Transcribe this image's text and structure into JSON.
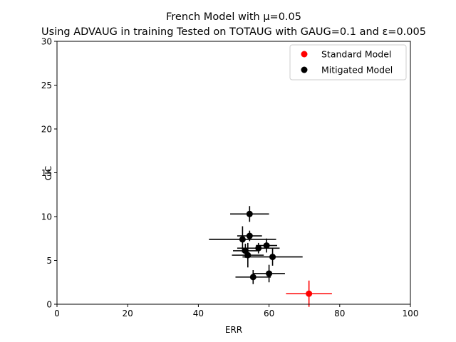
{
  "chart_data": {
    "type": "scatter",
    "title_line1": "French Model with μ=0.05",
    "title_line2": "Using ADVAUG in training Tested on TOTAUG with GAUG=0.1 and ε=0.005",
    "xlabel": "ERR",
    "ylabel": "CIC",
    "xlim": [
      0,
      100
    ],
    "ylim": [
      0,
      30
    ],
    "xticks": [
      0,
      20,
      40,
      60,
      80,
      100
    ],
    "yticks": [
      0,
      5,
      10,
      15,
      20,
      25,
      30
    ],
    "grid": false,
    "legend_position": "top-right",
    "series": [
      {
        "name": "Standard Model",
        "color": "#ff0000",
        "points": [
          {
            "x": 71.3,
            "y": 1.2,
            "xerr": 6.5,
            "yerr": 1.5
          }
        ]
      },
      {
        "name": "Mitigated Model",
        "color": "#000000",
        "points": [
          {
            "x": 54.5,
            "y": 10.3,
            "xerr": 5.5,
            "yerr": 0.9
          },
          {
            "x": 54.5,
            "y": 7.8,
            "xerr": 3.5,
            "yerr": 0.6
          },
          {
            "x": 52.5,
            "y": 7.4,
            "xerr": 9.5,
            "yerr": 1.5
          },
          {
            "x": 59.3,
            "y": 6.7,
            "xerr": 3.0,
            "yerr": 0.8
          },
          {
            "x": 57.0,
            "y": 6.4,
            "xerr": 6.0,
            "yerr": 0.6
          },
          {
            "x": 53.3,
            "y": 6.1,
            "xerr": 3.5,
            "yerr": 0.8
          },
          {
            "x": 54.0,
            "y": 5.6,
            "xerr": 4.5,
            "yerr": 1.4
          },
          {
            "x": 61.0,
            "y": 5.4,
            "xerr": 8.5,
            "yerr": 1.0
          },
          {
            "x": 60.0,
            "y": 3.5,
            "xerr": 4.5,
            "yerr": 1.0
          },
          {
            "x": 55.5,
            "y": 3.1,
            "xerr": 5.0,
            "yerr": 0.8
          }
        ]
      }
    ]
  }
}
